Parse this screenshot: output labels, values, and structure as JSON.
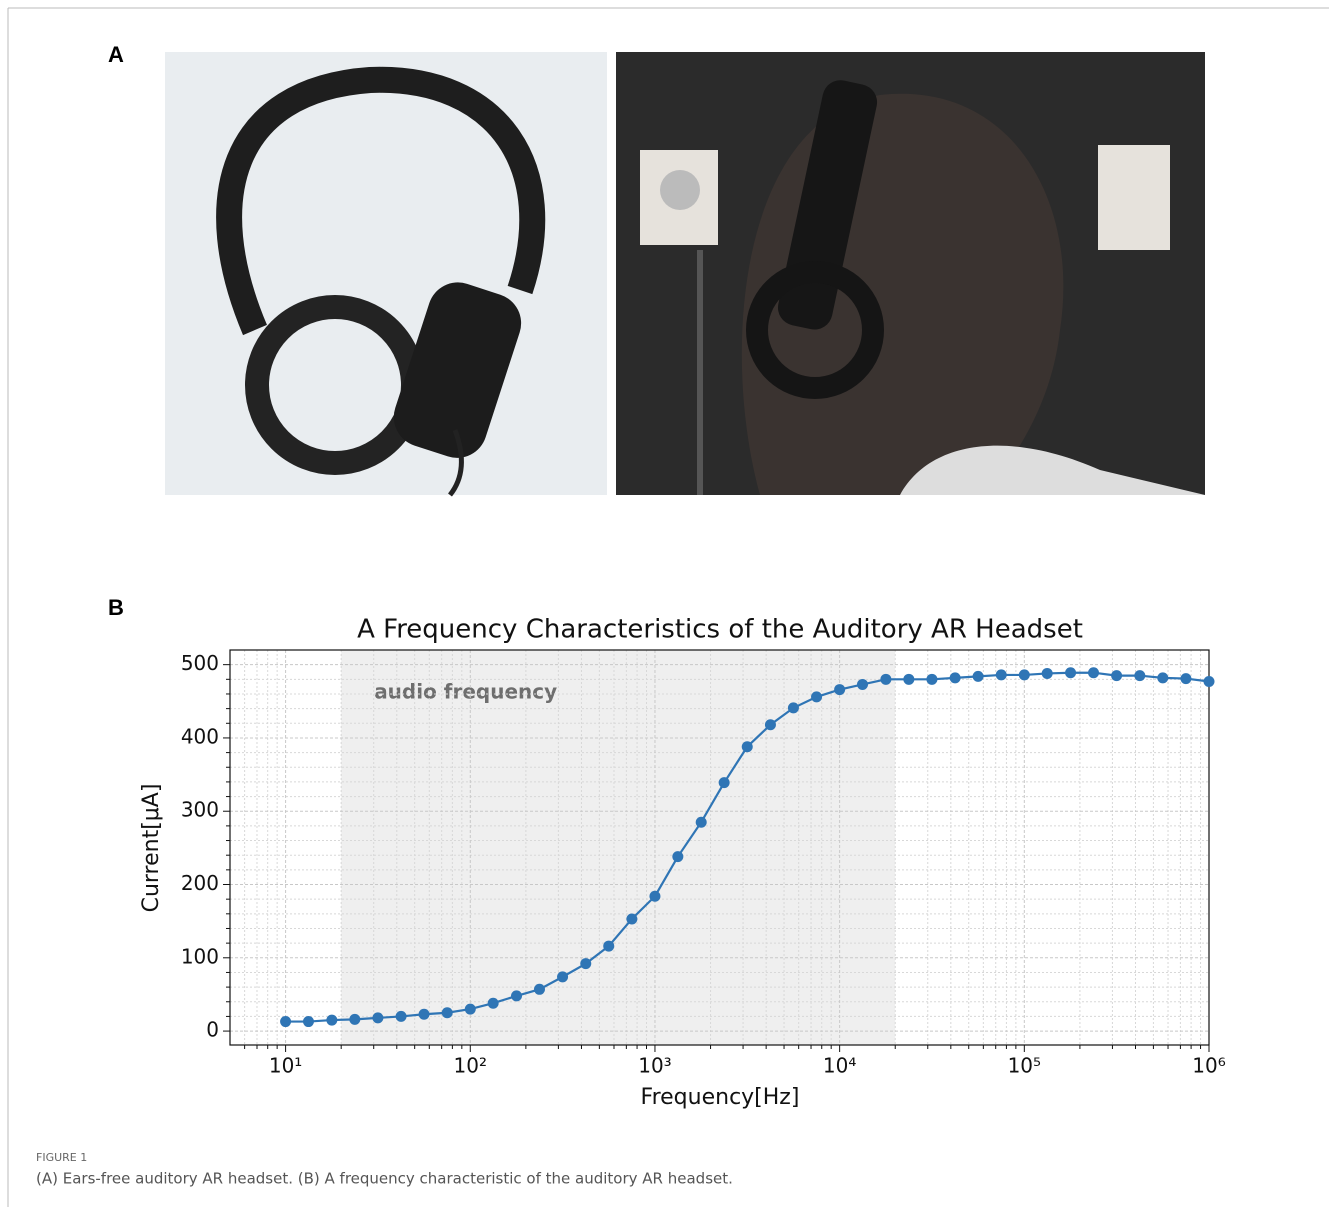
{
  "panel_labels": [
    "A",
    "B"
  ],
  "chart_data": {
    "type": "line",
    "title": "A Frequency Characteristics of the Auditory AR Headset",
    "x_label": "Frequency[Hz]",
    "y_label": "Current[μA]",
    "x": [
      10,
      13.3,
      17.8,
      23.7,
      31.6,
      42.2,
      56.2,
      75,
      100,
      133,
      178,
      237,
      316,
      422,
      562,
      750,
      1000,
      1330,
      1780,
      2370,
      3160,
      4220,
      5620,
      7500,
      10000,
      13300,
      17800,
      23700,
      31600,
      42200,
      56200,
      75000,
      100000,
      133000,
      178000,
      237000,
      316000,
      422000,
      562000,
      750000,
      1000000
    ],
    "values": [
      13,
      13,
      15,
      16,
      18,
      20,
      23,
      25,
      30,
      38,
      48,
      57,
      74,
      92,
      116,
      153,
      184,
      238,
      285,
      339,
      388,
      418,
      441,
      456,
      466,
      473,
      480,
      480,
      480,
      482,
      484,
      486,
      486,
      488,
      489,
      489,
      485,
      485,
      482,
      481,
      477
    ],
    "color": "#2f75b5",
    "x_scale": "log",
    "xlim": [
      5,
      1000000
    ],
    "ylim": [
      -19,
      520
    ],
    "xticks": [
      {
        "value": 10,
        "label": "10¹"
      },
      {
        "value": 100,
        "label": "10²"
      },
      {
        "value": 1000,
        "label": "10³"
      },
      {
        "value": 10000,
        "label": "10⁴"
      },
      {
        "value": 100000,
        "label": "10⁵"
      },
      {
        "value": 1000000,
        "label": "10⁶"
      }
    ],
    "xminorticks": [
      6,
      7,
      8,
      9,
      20,
      30,
      40,
      50,
      60,
      70,
      80,
      90,
      200,
      300,
      400,
      500,
      600,
      700,
      800,
      900,
      2000,
      3000,
      4000,
      5000,
      6000,
      7000,
      8000,
      9000,
      20000,
      30000,
      40000,
      50000,
      60000,
      70000,
      80000,
      90000,
      200000,
      300000,
      400000,
      500000,
      600000,
      700000,
      800000,
      900000
    ],
    "yticks": [
      0,
      100,
      200,
      300,
      400,
      500
    ],
    "yminorticks": [
      20,
      40,
      60,
      80,
      120,
      140,
      160,
      180,
      220,
      240,
      260,
      280,
      320,
      340,
      360,
      380,
      420,
      440,
      460,
      480
    ],
    "grid": true,
    "shaded_span": {
      "range": [
        20,
        20000
      ],
      "label": "audio frequency",
      "color": "#efefef"
    }
  },
  "caption": {
    "label": "FIGURE 1",
    "text": "(A) Ears-free auditory AR headset. (B) A frequency characteristic of the auditory AR headset."
  }
}
